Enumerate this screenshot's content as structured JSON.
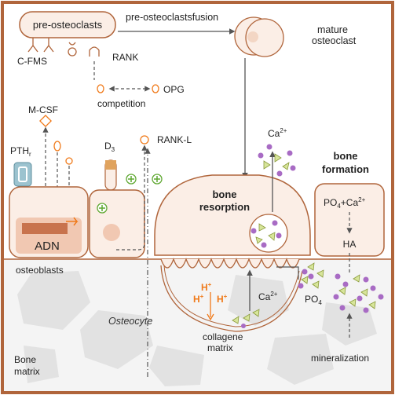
{
  "cells": {
    "pre_osteoclasts": "pre-osteoclasts",
    "fusion": "pre-osteoclastsfusion",
    "mature_line1": "mature",
    "mature_line2": "osteoclast",
    "osteoblasts": "osteoblasts",
    "osteocyte": "Osteocyte"
  },
  "signals": {
    "c_fms": "C-FMS",
    "rank": "RANK",
    "opg": "OPG",
    "competition": "competition",
    "m_csf": "M-CSF",
    "pth": "PTH",
    "pth_sub": "r",
    "d3": "D",
    "d3_sub": "3",
    "rank_l": "RANK-L",
    "adn": "ADN"
  },
  "resorption": {
    "title_line1": "bone",
    "title_line2": "resorption",
    "ca_top": "Ca",
    "ca_top_sup": "2+",
    "h1": "H",
    "h2": "H",
    "h3": "H",
    "h_sup": "+",
    "ca_mid": "Ca",
    "ca_mid_sup": "2+",
    "po4": "PO",
    "po4_sub": "4",
    "collagen_line1": "collagene",
    "collagen_line2": "matrix"
  },
  "formation": {
    "title_line1": "bone",
    "title_line2": "formation",
    "po4": "PO",
    "po4_sub": "4",
    "plus_ca": "+Ca",
    "plus_ca_sup": "2+",
    "ha": "HA",
    "mineralization": "mineralization"
  },
  "matrix": {
    "line1": "Bone",
    "line2": "matrix"
  },
  "colors": {
    "frame": "#b0653b",
    "cell_fill": "#fbeee6",
    "cell_stroke": "#b0653b",
    "text": "#222222",
    "orange": "#f07a1a",
    "green": "#5fa832",
    "purple": "#a86bc4",
    "mineral_green": "#d7e59a",
    "pth_blue": "#9cc3cf",
    "matrix_grey": "#e4e4e4"
  }
}
